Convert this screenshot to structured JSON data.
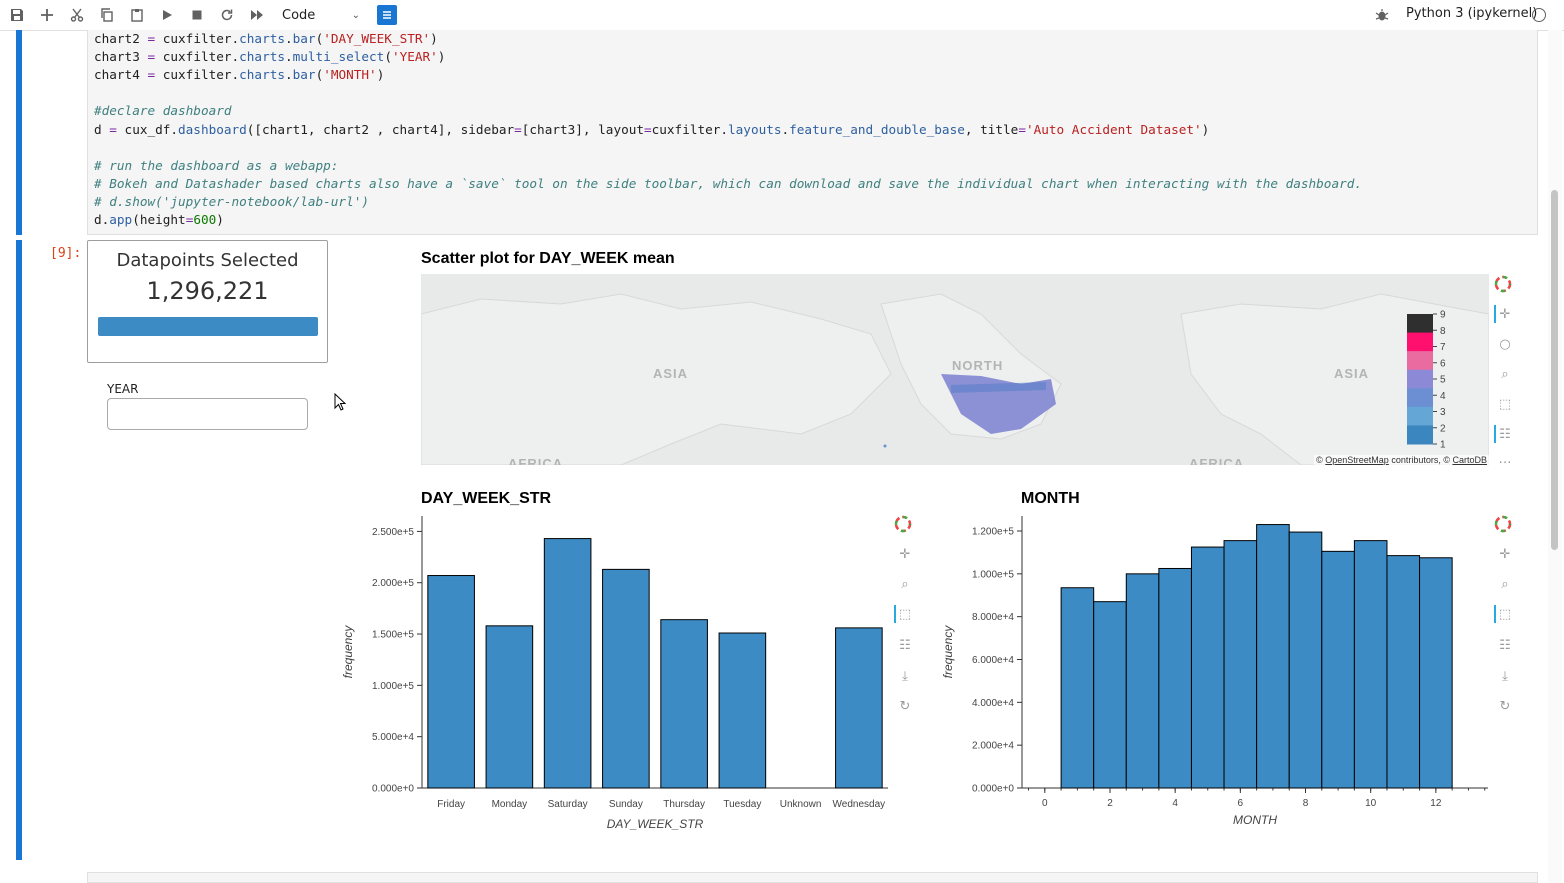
{
  "toolbar": {
    "buttons": [
      "save-icon",
      "add-cell-icon",
      "cut-icon",
      "copy-icon",
      "paste-icon",
      "run-icon",
      "stop-icon",
      "restart-icon",
      "run-all-icon"
    ],
    "cell_type": "Code",
    "kernel": "Python 3 (ipykernel)"
  },
  "code": {
    "lines": [
      "chart2 = cuxfilter.charts.bar('DAY_WEEK_STR')",
      "chart3 = cuxfilter.charts.multi_select('YEAR')",
      "chart4 = cuxfilter.charts.bar('MONTH')",
      "",
      "#declare dashboard",
      "d = cux_df.dashboard([chart1, chart2 , chart4], sidebar=[chart3], layout=cuxfilter.layouts.feature_and_double_base, title='Auto Accident Dataset')",
      "",
      "# run the dashboard as a webapp:",
      "# Bokeh and Datashader based charts also have a `save` tool on the side toolbar, which can download and save the individual chart when interacting with the dashboard.",
      "# d.show('jupyter-notebook/lab-url')",
      "d.app(height=600)"
    ]
  },
  "output": {
    "prompt": "[9]:",
    "datapoints": {
      "title": "Datapoints Selected",
      "count": "1,296,221",
      "fraction": 1.0
    },
    "year_filter": {
      "label": "YEAR",
      "value": ""
    },
    "scatter": {
      "title": "Scatter plot for DAY_WEEK mean",
      "map_labels": [
        "ASIA",
        "NORTH",
        "ASIA",
        "AFRICA",
        "AFRICA"
      ],
      "attribution_prefix": "© ",
      "attribution_link1": "OpenStreetMap",
      "attribution_mid": " contributors, © ",
      "attribution_link2": "CartoDB",
      "colorbar": {
        "ticks": [
          "9",
          "8",
          "7",
          "6",
          "5",
          "4",
          "3",
          "2",
          "1"
        ],
        "colors": [
          "#2f2f2f",
          "#ff0f6e",
          "#e96ba0",
          "#8c89d6",
          "#6c8fd4",
          "#64a6d6",
          "#3b86bf"
        ]
      }
    }
  },
  "chart_data": [
    {
      "type": "bar",
      "title": "DAY_WEEK_STR",
      "categories": [
        "Friday",
        "Monday",
        "Saturday",
        "Sunday",
        "Thursday",
        "Tuesday",
        "Unknown",
        "Wednesday"
      ],
      "values": [
        207000,
        158000,
        243000,
        213000,
        164000,
        151000,
        0,
        156000
      ],
      "xlabel": "DAY_WEEK_STR",
      "ylabel": "frequency",
      "yticks": [
        "0.000e+0",
        "5.000e+4",
        "1.000e+5",
        "1.500e+5",
        "2.000e+5",
        "2.500e+5"
      ],
      "ylim": [
        0,
        265000
      ],
      "color": "#3d8bc4"
    },
    {
      "type": "bar",
      "title": "MONTH",
      "x": [
        1,
        2,
        3,
        4,
        5,
        6,
        7,
        8,
        9,
        10,
        11,
        12
      ],
      "values": [
        93500,
        87000,
        100000,
        102500,
        112500,
        115500,
        123000,
        119500,
        110500,
        115500,
        108500,
        107500
      ],
      "xlabel": "MONTH",
      "ylabel": "frequency",
      "xticks": [
        "0",
        "2",
        "4",
        "6",
        "8",
        "10",
        "12"
      ],
      "yticks": [
        "0.000e+0",
        "2.000e+4",
        "4.000e+4",
        "6.000e+4",
        "8.000e+4",
        "1.000e+5",
        "1.200e+5"
      ],
      "xlim": [
        -0.7,
        13.6
      ],
      "ylim": [
        0,
        127000
      ],
      "color": "#3d8bc4"
    }
  ]
}
